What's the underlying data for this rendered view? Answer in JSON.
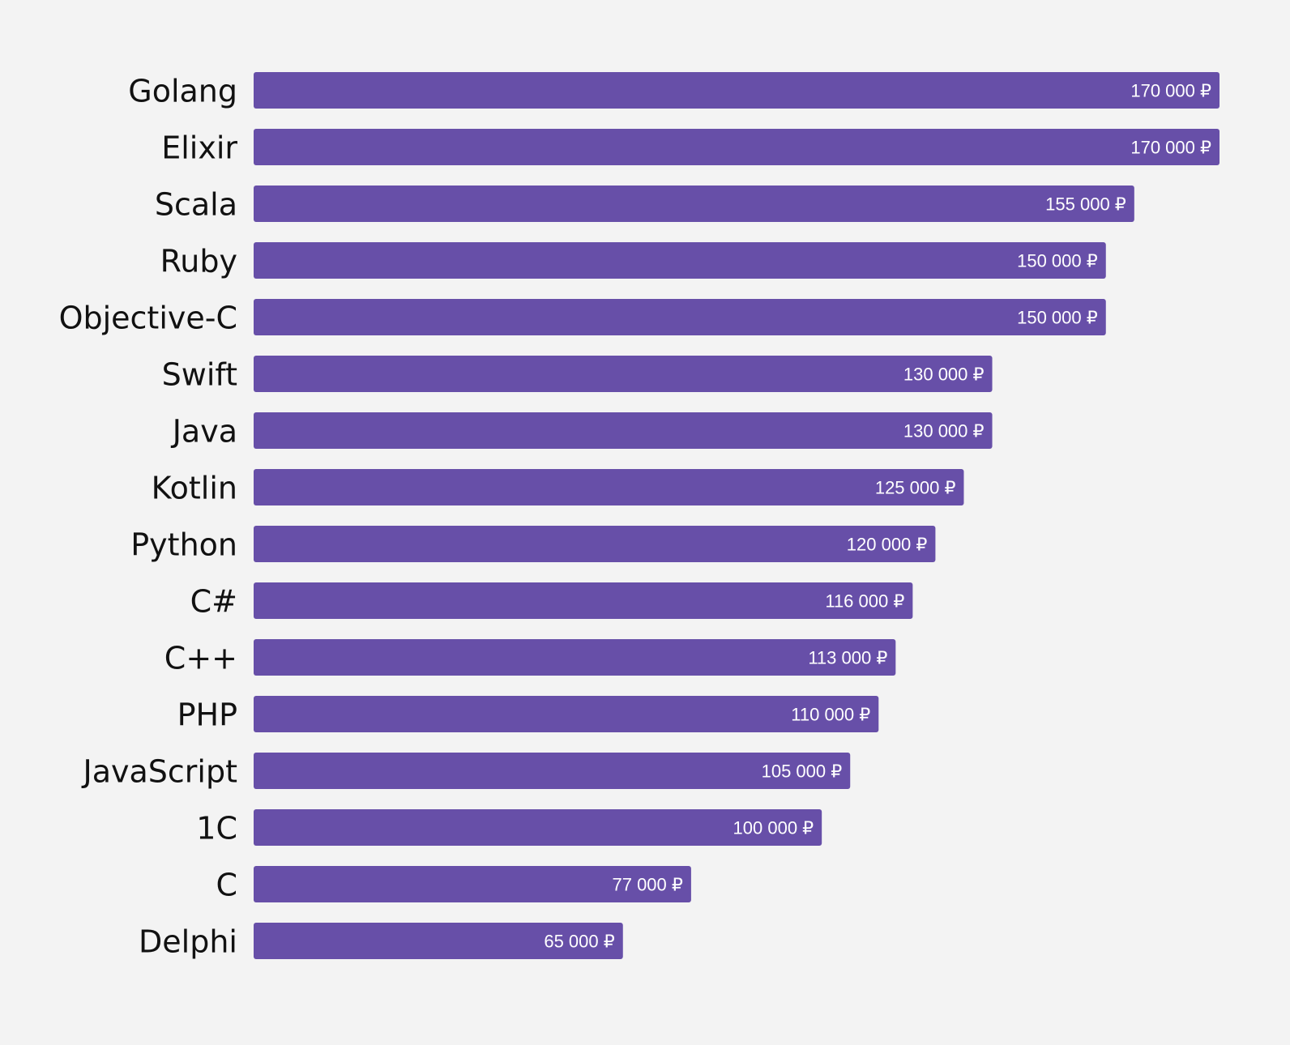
{
  "chart_data": {
    "type": "bar",
    "orientation": "horizontal",
    "title": "",
    "xlabel": "",
    "ylabel": "",
    "xlim": [
      0,
      170000
    ],
    "grid": false,
    "bar_color": "#674fa8",
    "background_color": "#f3f3f3",
    "categories": [
      "Golang",
      "Elixir",
      "Scala",
      "Ruby",
      "Objective-C",
      "Swift",
      "Java",
      "Kotlin",
      "Python",
      "C#",
      "C++",
      "PHP",
      "JavaScript",
      "1C",
      "C",
      "Delphi"
    ],
    "values": [
      170000,
      170000,
      155000,
      150000,
      150000,
      130000,
      130000,
      125000,
      120000,
      116000,
      113000,
      110000,
      105000,
      100000,
      77000,
      65000
    ],
    "data_labels": [
      "170 000 ₽",
      "170 000 ₽",
      "155 000 ₽",
      "150 000 ₽",
      "150 000 ₽",
      "130 000 ₽",
      "130 000 ₽",
      "125 000 ₽",
      "120 000 ₽",
      "116 000 ₽",
      "113 000 ₽",
      "110 000 ₽",
      "105 000 ₽",
      "100 000 ₽",
      "77 000 ₽",
      "65 000 ₽"
    ]
  }
}
